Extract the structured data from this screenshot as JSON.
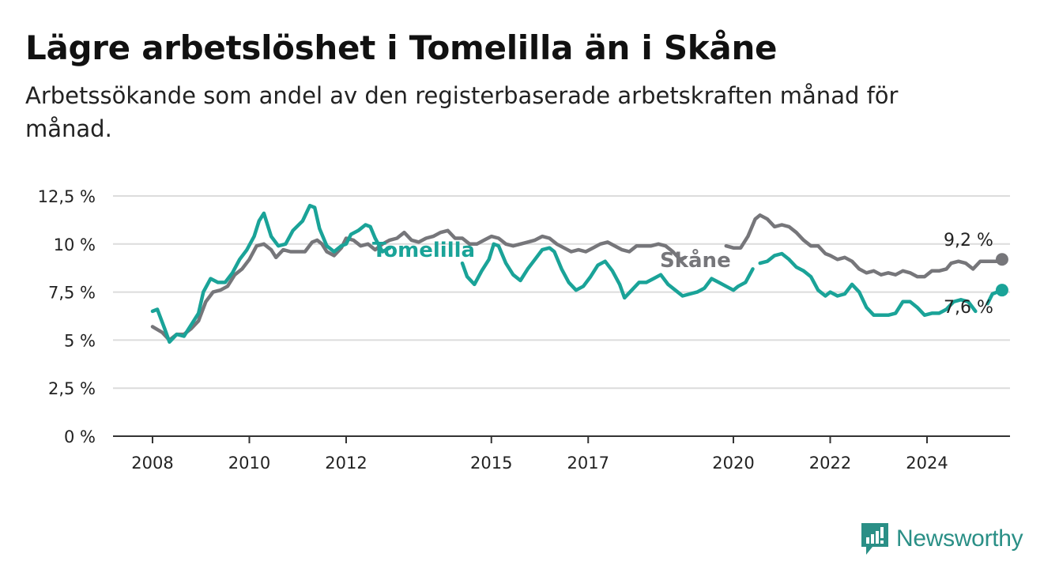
{
  "header": {
    "title": "Lägre arbetslöshet i Tomelilla än i Skåne",
    "subtitle": "Arbetssökande som andel av den registerbaserade arbetskraften månad för månad."
  },
  "brand": {
    "name": "Newsworthy",
    "icon": "newsworthy-logo-icon",
    "color": "#2a8f86"
  },
  "chart_data": {
    "type": "line",
    "title": "Lägre arbetslöshet i Tomelilla än i Skåne",
    "subtitle": "Arbetssökande som andel av den registerbaserade arbetskraften månad för månad.",
    "x_unit": "year",
    "xlim": [
      2007.2,
      2025.8
    ],
    "ylim": [
      0,
      12.5
    ],
    "y_ticks": [
      {
        "value": 0,
        "label": "0 %"
      },
      {
        "value": 2.5,
        "label": "2,5 %"
      },
      {
        "value": 5,
        "label": "5 %"
      },
      {
        "value": 7.5,
        "label": "7,5 %"
      },
      {
        "value": 10,
        "label": "10 %"
      },
      {
        "value": 12.5,
        "label": "12,5 %"
      }
    ],
    "x_ticks": [
      {
        "value": 2008,
        "label": "2008"
      },
      {
        "value": 2010,
        "label": "2010"
      },
      {
        "value": 2012,
        "label": "2012"
      },
      {
        "value": 2015,
        "label": "2015"
      },
      {
        "value": 2017,
        "label": "2017"
      },
      {
        "value": 2020,
        "label": "2020"
      },
      {
        "value": 2022,
        "label": "2022"
      },
      {
        "value": 2024,
        "label": "2024"
      }
    ],
    "grid": true,
    "series": [
      {
        "name": "Skåne",
        "color": "#76767a",
        "end_label": "9,2 %",
        "points": [
          [
            2008.0,
            5.7
          ],
          [
            2008.2,
            5.4
          ],
          [
            2008.35,
            5.0
          ],
          [
            2008.5,
            5.3
          ],
          [
            2008.65,
            5.3
          ],
          [
            2008.8,
            5.6
          ],
          [
            2008.95,
            6.0
          ],
          [
            2009.1,
            7.0
          ],
          [
            2009.25,
            7.5
          ],
          [
            2009.4,
            7.6
          ],
          [
            2009.55,
            7.8
          ],
          [
            2009.7,
            8.4
          ],
          [
            2009.85,
            8.7
          ],
          [
            2010.0,
            9.2
          ],
          [
            2010.15,
            9.9
          ],
          [
            2010.3,
            10.0
          ],
          [
            2010.45,
            9.7
          ],
          [
            2010.55,
            9.3
          ],
          [
            2010.7,
            9.7
          ],
          [
            2010.85,
            9.6
          ],
          [
            2011.0,
            9.6
          ],
          [
            2011.15,
            9.6
          ],
          [
            2011.3,
            10.1
          ],
          [
            2011.4,
            10.2
          ],
          [
            2011.5,
            10.0
          ],
          [
            2011.6,
            9.6
          ],
          [
            2011.75,
            9.4
          ],
          [
            2011.9,
            9.8
          ],
          [
            2012.0,
            10.3
          ],
          [
            2012.15,
            10.2
          ],
          [
            2012.3,
            9.9
          ],
          [
            2012.45,
            10.0
          ],
          [
            2012.6,
            9.7
          ],
          [
            2012.75,
            10.0
          ],
          [
            2012.9,
            10.2
          ],
          [
            2013.05,
            10.3
          ],
          [
            2013.2,
            10.6
          ],
          [
            2013.35,
            10.2
          ],
          [
            2013.5,
            10.1
          ],
          [
            2013.65,
            10.3
          ],
          [
            2013.8,
            10.4
          ],
          [
            2013.95,
            10.6
          ],
          [
            2014.1,
            10.7
          ],
          [
            2014.25,
            10.3
          ],
          [
            2014.4,
            10.3
          ],
          [
            2014.55,
            10.0
          ],
          [
            2014.7,
            10.0
          ],
          [
            2014.85,
            10.2
          ],
          [
            2015.0,
            10.4
          ],
          [
            2015.15,
            10.3
          ],
          [
            2015.3,
            10.0
          ],
          [
            2015.45,
            9.9
          ],
          [
            2015.6,
            10.0
          ],
          [
            2015.75,
            10.1
          ],
          [
            2015.9,
            10.2
          ],
          [
            2016.05,
            10.4
          ],
          [
            2016.2,
            10.3
          ],
          [
            2016.35,
            10.0
          ],
          [
            2016.5,
            9.8
          ],
          [
            2016.65,
            9.6
          ],
          [
            2016.8,
            9.7
          ],
          [
            2016.95,
            9.6
          ],
          [
            2017.1,
            9.8
          ],
          [
            2017.25,
            10.0
          ],
          [
            2017.4,
            10.1
          ],
          [
            2017.55,
            9.9
          ],
          [
            2017.7,
            9.7
          ],
          [
            2017.85,
            9.6
          ],
          [
            2018.0,
            9.9
          ],
          [
            2018.15,
            9.9
          ],
          [
            2018.3,
            9.9
          ],
          [
            2018.45,
            10.0
          ],
          [
            2018.6,
            9.9
          ],
          [
            2018.75,
            9.6
          ],
          [
            2018.9,
            9.2
          ],
          [
            2019.0,
            9.3
          ]
        ],
        "points_b": [
          [
            2019.85,
            9.9
          ],
          [
            2020.0,
            9.8
          ],
          [
            2020.15,
            9.8
          ],
          [
            2020.3,
            10.4
          ],
          [
            2020.45,
            11.3
          ],
          [
            2020.55,
            11.5
          ],
          [
            2020.7,
            11.3
          ],
          [
            2020.85,
            10.9
          ],
          [
            2021.0,
            11.0
          ],
          [
            2021.15,
            10.9
          ],
          [
            2021.3,
            10.6
          ],
          [
            2021.45,
            10.2
          ],
          [
            2021.6,
            9.9
          ],
          [
            2021.75,
            9.9
          ],
          [
            2021.9,
            9.5
          ],
          [
            2022.0,
            9.4
          ],
          [
            2022.15,
            9.2
          ],
          [
            2022.3,
            9.3
          ],
          [
            2022.45,
            9.1
          ],
          [
            2022.6,
            8.7
          ],
          [
            2022.75,
            8.5
          ],
          [
            2022.9,
            8.6
          ],
          [
            2023.05,
            8.4
          ],
          [
            2023.2,
            8.5
          ],
          [
            2023.35,
            8.4
          ],
          [
            2023.5,
            8.6
          ],
          [
            2023.65,
            8.5
          ],
          [
            2023.8,
            8.3
          ],
          [
            2023.95,
            8.3
          ],
          [
            2024.1,
            8.6
          ],
          [
            2024.25,
            8.6
          ],
          [
            2024.4,
            8.7
          ],
          [
            2024.5,
            9.0
          ],
          [
            2024.65,
            9.1
          ],
          [
            2024.8,
            9.0
          ],
          [
            2024.95,
            8.7
          ],
          [
            2025.1,
            9.1
          ],
          [
            2025.3,
            9.1
          ],
          [
            2025.45,
            9.1
          ],
          [
            2025.55,
            9.2
          ]
        ]
      },
      {
        "name": "Tomelilla",
        "color": "#1aa398",
        "end_label": "7,6 %",
        "points": [
          [
            2008.0,
            6.5
          ],
          [
            2008.1,
            6.6
          ],
          [
            2008.25,
            5.6
          ],
          [
            2008.35,
            4.9
          ],
          [
            2008.5,
            5.3
          ],
          [
            2008.65,
            5.2
          ],
          [
            2008.8,
            5.8
          ],
          [
            2008.95,
            6.4
          ],
          [
            2009.05,
            7.5
          ],
          [
            2009.2,
            8.2
          ],
          [
            2009.35,
            8.0
          ],
          [
            2009.5,
            8.0
          ],
          [
            2009.65,
            8.5
          ],
          [
            2009.8,
            9.2
          ],
          [
            2009.95,
            9.7
          ],
          [
            2010.1,
            10.4
          ],
          [
            2010.2,
            11.2
          ],
          [
            2010.3,
            11.6
          ],
          [
            2010.45,
            10.4
          ],
          [
            2010.6,
            9.9
          ],
          [
            2010.75,
            10.0
          ],
          [
            2010.9,
            10.7
          ],
          [
            2011.1,
            11.2
          ],
          [
            2011.25,
            12.0
          ],
          [
            2011.35,
            11.9
          ],
          [
            2011.45,
            10.8
          ],
          [
            2011.6,
            9.9
          ],
          [
            2011.75,
            9.6
          ],
          [
            2011.9,
            9.9
          ],
          [
            2012.0,
            10.0
          ],
          [
            2012.1,
            10.5
          ],
          [
            2012.25,
            10.7
          ],
          [
            2012.4,
            11.0
          ],
          [
            2012.5,
            10.9
          ],
          [
            2012.6,
            10.3
          ],
          [
            2012.75,
            9.6
          ],
          [
            2012.9,
            9.8
          ]
        ],
        "points_b": [
          [
            2014.4,
            9.0
          ],
          [
            2014.5,
            8.3
          ],
          [
            2014.65,
            7.9
          ],
          [
            2014.8,
            8.6
          ],
          [
            2014.95,
            9.2
          ],
          [
            2015.05,
            10.0
          ],
          [
            2015.15,
            9.9
          ],
          [
            2015.3,
            9.0
          ],
          [
            2015.45,
            8.4
          ],
          [
            2015.6,
            8.1
          ],
          [
            2015.75,
            8.7
          ],
          [
            2015.9,
            9.2
          ],
          [
            2016.05,
            9.7
          ],
          [
            2016.2,
            9.8
          ],
          [
            2016.3,
            9.6
          ],
          [
            2016.45,
            8.7
          ],
          [
            2016.6,
            8.0
          ],
          [
            2016.75,
            7.6
          ],
          [
            2016.9,
            7.8
          ],
          [
            2017.05,
            8.3
          ],
          [
            2017.2,
            8.9
          ],
          [
            2017.35,
            9.1
          ],
          [
            2017.5,
            8.6
          ],
          [
            2017.65,
            7.9
          ],
          [
            2017.75,
            7.2
          ],
          [
            2017.9,
            7.6
          ],
          [
            2018.05,
            8.0
          ],
          [
            2018.2,
            8.0
          ],
          [
            2018.35,
            8.2
          ],
          [
            2018.5,
            8.4
          ],
          [
            2018.65,
            7.9
          ],
          [
            2018.8,
            7.6
          ],
          [
            2018.95,
            7.3
          ],
          [
            2019.1,
            7.4
          ],
          [
            2019.25,
            7.5
          ],
          [
            2019.4,
            7.7
          ],
          [
            2019.55,
            8.2
          ],
          [
            2019.7,
            8.0
          ],
          [
            2019.85,
            7.8
          ],
          [
            2020.0,
            7.6
          ],
          [
            2020.1,
            7.8
          ],
          [
            2020.25,
            8.0
          ],
          [
            2020.4,
            8.7
          ]
        ],
        "points_c": [
          [
            2020.55,
            9.0
          ],
          [
            2020.7,
            9.1
          ],
          [
            2020.85,
            9.4
          ],
          [
            2021.0,
            9.5
          ],
          [
            2021.15,
            9.2
          ],
          [
            2021.3,
            8.8
          ],
          [
            2021.45,
            8.6
          ],
          [
            2021.6,
            8.3
          ],
          [
            2021.75,
            7.6
          ],
          [
            2021.9,
            7.3
          ],
          [
            2022.0,
            7.5
          ],
          [
            2022.15,
            7.3
          ],
          [
            2022.3,
            7.4
          ],
          [
            2022.45,
            7.9
          ],
          [
            2022.6,
            7.5
          ],
          [
            2022.75,
            6.7
          ],
          [
            2022.9,
            6.3
          ],
          [
            2023.05,
            6.3
          ],
          [
            2023.2,
            6.3
          ],
          [
            2023.35,
            6.4
          ],
          [
            2023.5,
            7.0
          ],
          [
            2023.65,
            7.0
          ],
          [
            2023.8,
            6.7
          ],
          [
            2023.95,
            6.3
          ],
          [
            2024.1,
            6.4
          ],
          [
            2024.25,
            6.4
          ],
          [
            2024.4,
            6.6
          ],
          [
            2024.55,
            7.0
          ],
          [
            2024.7,
            7.1
          ],
          [
            2024.85,
            7.0
          ],
          [
            2025.0,
            6.5
          ]
        ],
        "points_d": [
          [
            2025.25,
            6.9
          ],
          [
            2025.35,
            7.4
          ],
          [
            2025.55,
            7.6
          ]
        ]
      }
    ]
  }
}
